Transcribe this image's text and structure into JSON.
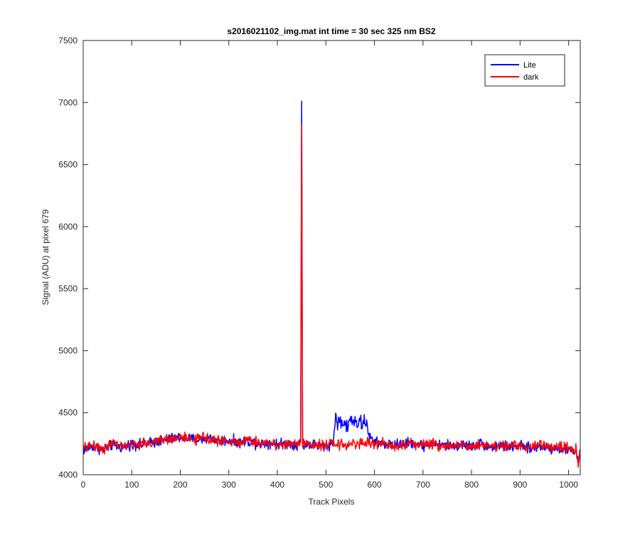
{
  "chart_data": {
    "type": "line",
    "title": "s2016021102_img.mat int time = 30 sec  325 nm BS2",
    "xlabel": "Track Pixels",
    "ylabel": "Signal (ADU) at pixel 679",
    "xlim": [
      0,
      1024
    ],
    "ylim": [
      4000,
      7500
    ],
    "xticks": [
      0,
      100,
      200,
      300,
      400,
      500,
      600,
      700,
      800,
      900,
      1000
    ],
    "yticks": [
      4000,
      4500,
      5000,
      5500,
      6000,
      6500,
      7000,
      7500
    ],
    "grid": false,
    "legend_position": "top-right",
    "series": [
      {
        "name": "Lite",
        "color": "#0000ff",
        "x": [
          0,
          20,
          40,
          60,
          80,
          100,
          120,
          140,
          160,
          180,
          200,
          220,
          240,
          260,
          280,
          300,
          320,
          340,
          360,
          380,
          400,
          420,
          440,
          448,
          450,
          452,
          460,
          480,
          500,
          515,
          520,
          525,
          530,
          535,
          540,
          545,
          550,
          555,
          560,
          565,
          570,
          575,
          580,
          585,
          590,
          600,
          620,
          640,
          660,
          680,
          700,
          720,
          740,
          760,
          780,
          800,
          820,
          840,
          860,
          880,
          900,
          920,
          940,
          960,
          980,
          1000,
          1015,
          1020,
          1024
        ],
        "y": [
          4200,
          4230,
          4200,
          4240,
          4220,
          4250,
          4240,
          4260,
          4270,
          4290,
          4300,
          4290,
          4280,
          4300,
          4270,
          4280,
          4260,
          4270,
          4250,
          4260,
          4250,
          4250,
          4240,
          4260,
          7010,
          4230,
          4250,
          4240,
          4230,
          4260,
          4480,
          4400,
          4450,
          4390,
          4420,
          4370,
          4460,
          4410,
          4470,
          4400,
          4450,
          4390,
          4440,
          4400,
          4300,
          4260,
          4250,
          4240,
          4250,
          4260,
          4230,
          4250,
          4240,
          4230,
          4240,
          4230,
          4250,
          4220,
          4240,
          4220,
          4230,
          4210,
          4230,
          4220,
          4210,
          4200,
          4190,
          4100,
          4210
        ]
      },
      {
        "name": "dark",
        "color": "#ff0000",
        "x": [
          0,
          20,
          40,
          60,
          80,
          100,
          120,
          140,
          160,
          180,
          200,
          220,
          240,
          260,
          280,
          300,
          320,
          340,
          360,
          380,
          400,
          420,
          440,
          448,
          450,
          452,
          460,
          480,
          500,
          520,
          540,
          560,
          580,
          600,
          620,
          640,
          660,
          680,
          700,
          720,
          740,
          760,
          780,
          800,
          820,
          840,
          860,
          880,
          900,
          920,
          940,
          960,
          980,
          1000,
          1015,
          1020,
          1024
        ],
        "y": [
          4210,
          4240,
          4210,
          4250,
          4230,
          4240,
          4250,
          4260,
          4280,
          4290,
          4310,
          4280,
          4290,
          4300,
          4270,
          4270,
          4260,
          4280,
          4250,
          4260,
          4240,
          4250,
          4250,
          4270,
          6820,
          4240,
          4240,
          4250,
          4240,
          4250,
          4240,
          4250,
          4260,
          4250,
          4250,
          4240,
          4240,
          4260,
          4240,
          4250,
          4230,
          4240,
          4250,
          4220,
          4250,
          4230,
          4240,
          4230,
          4240,
          4220,
          4240,
          4220,
          4230,
          4210,
          4200,
          4080,
          4200
        ]
      }
    ]
  }
}
